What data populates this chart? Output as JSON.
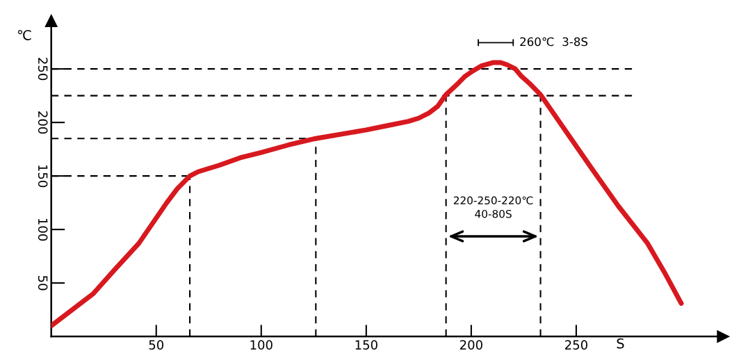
{
  "chart_data": {
    "type": "line",
    "xlabel": "S",
    "ylabel": "℃",
    "x": [
      0,
      20,
      30,
      41.7,
      55,
      60,
      66,
      70,
      80,
      90,
      100,
      113,
      126,
      150,
      160,
      170,
      175,
      180,
      184,
      188,
      194,
      197,
      200.7,
      205,
      210.6,
      214,
      217,
      221,
      224,
      228,
      233,
      245,
      257,
      270,
      284,
      292,
      300
    ],
    "series": [
      {
        "color": "#d7191f",
        "values": [
          10,
          40,
          62,
          87,
          125,
          138,
          150,
          154,
          160,
          167,
          172,
          179,
          185,
          193,
          197,
          201,
          204,
          209,
          215,
          226,
          237,
          243,
          248,
          253,
          256,
          256,
          254,
          250,
          243,
          236,
          226,
          192,
          158,
          122,
          87,
          60,
          31
        ]
      }
    ],
    "xlim": [
      0,
      320
    ],
    "ylim": [
      0,
      295
    ],
    "xticks": [
      50,
      100,
      150,
      200,
      250
    ],
    "yticks": [
      50,
      100,
      150,
      200,
      250
    ],
    "grid": false,
    "marker": "none",
    "line_style": "solid",
    "ref_lines": [
      {
        "axis": "y",
        "value": 250,
        "color": "#000000",
        "line_style": "dashed"
      },
      {
        "axis": "y",
        "value": 225,
        "color": "#000000",
        "line_style": "dashed"
      },
      {
        "axis": "y",
        "value": 185,
        "color": "#000000",
        "line_style": "dashed"
      },
      {
        "axis": "y",
        "value": 150,
        "color": "#000000",
        "line_style": "dashed"
      },
      {
        "axis": "x",
        "value": 66,
        "color": "#000000",
        "line_style": "dashed"
      },
      {
        "axis": "x",
        "value": 126,
        "color": "#000000",
        "line_style": "dashed"
      },
      {
        "axis": "x",
        "value": 188,
        "color": "#000000",
        "line_style": "dashed"
      },
      {
        "axis": "x",
        "value": 233,
        "color": "#000000",
        "line_style": "dashed"
      }
    ],
    "annotations": [
      "260℃  3-8S",
      "220-250-220℃\n40-80S"
    ]
  }
}
